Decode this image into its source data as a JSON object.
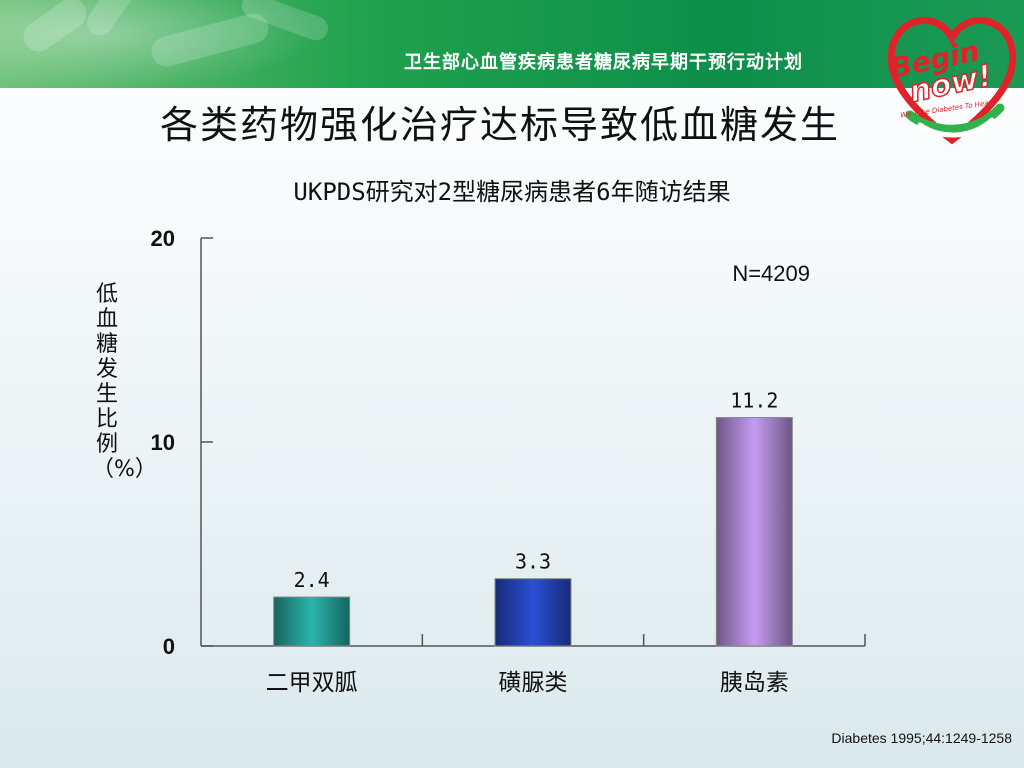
{
  "header": {
    "program": "卫生部心血管疾病患者糖尿病早期干预行动计划",
    "logo_line1": "Begin",
    "logo_line2": "now!",
    "logo_tagline": "We Take Diabetes To Heart"
  },
  "slide": {
    "title": "各类药物强化治疗达标导致低血糖发生",
    "citation": "Diabetes 1995;44:1249-1258"
  },
  "colors": {
    "banner_green": "#1a9a55",
    "bar_metformin": "#2ab5ad",
    "bar_sulfonylurea": "#2a4fd6",
    "bar_insulin": "#c79cf2"
  },
  "chart_data": {
    "type": "bar",
    "title": "UKPDS研究对2型糖尿病患者6年随访结果",
    "ylabel": "低血糖发生比例（%）",
    "xlabel": "",
    "categories": [
      "二甲双胍",
      "磺脲类",
      "胰岛素"
    ],
    "values": [
      2.4,
      3.3,
      11.2
    ],
    "value_labels": [
      "2.4",
      "3.3",
      "11.2"
    ],
    "yticks": [
      0,
      10,
      20
    ],
    "ylim": [
      0,
      20
    ],
    "annotation": "N=4209",
    "grid": false,
    "legend": "none"
  }
}
